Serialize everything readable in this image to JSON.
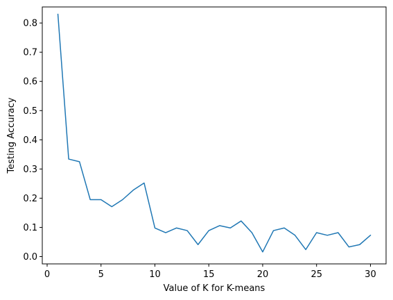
{
  "chart_data": {
    "type": "line",
    "title": "",
    "xlabel": "Value of K for K-means",
    "ylabel": "Testing Accuracy",
    "xlim": [
      -0.45,
      31.45
    ],
    "ylim": [
      -0.025,
      0.855
    ],
    "xticks": [
      0,
      5,
      10,
      15,
      20,
      25,
      30
    ],
    "yticks": [
      0.0,
      0.1,
      0.2,
      0.3,
      0.4,
      0.5,
      0.6,
      0.7,
      0.8
    ],
    "grid": false,
    "series": [
      {
        "color": "#1f77b4",
        "x": [
          1,
          2,
          3,
          4,
          5,
          6,
          7,
          8,
          9,
          10,
          11,
          12,
          13,
          14,
          15,
          16,
          17,
          18,
          19,
          20,
          21,
          22,
          23,
          24,
          25,
          26,
          27,
          28,
          29,
          30
        ],
        "y": [
          0.83,
          0.334,
          0.325,
          0.195,
          0.195,
          0.171,
          0.195,
          0.228,
          0.252,
          0.098,
          0.082,
          0.098,
          0.089,
          0.041,
          0.089,
          0.106,
          0.098,
          0.122,
          0.082,
          0.016,
          0.089,
          0.098,
          0.073,
          0.024,
          0.082,
          0.073,
          0.082,
          0.033,
          0.041,
          0.073
        ]
      }
    ]
  }
}
